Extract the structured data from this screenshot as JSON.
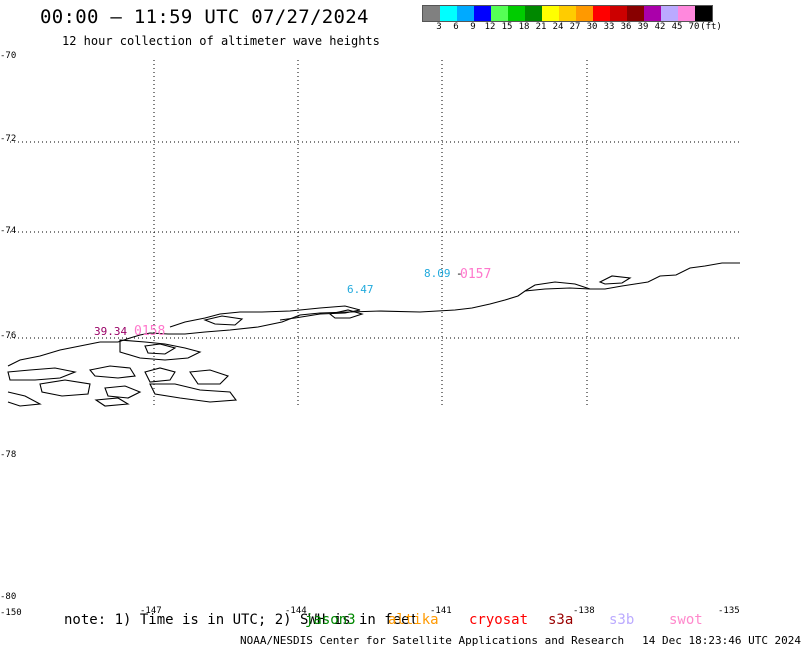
{
  "header": {
    "title": "00:00 – 11:59 UTC 07/27/2024",
    "subtitle": "12 hour collection of altimeter wave heights"
  },
  "legend": {
    "colors": [
      "#808080",
      "#00ffff",
      "#00aaff",
      "#0000ff",
      "#55ff55",
      "#00cc00",
      "#008800",
      "#ffff00",
      "#ffcc00",
      "#ff9900",
      "#ff0000",
      "#cc0000",
      "#880000",
      "#aa00aa",
      "#bbaaff",
      "#ff88dd",
      "#000000"
    ],
    "labels": [
      "3",
      "6",
      "9",
      "12",
      "15",
      "18",
      "21",
      "24",
      "27",
      "30",
      "33",
      "36",
      "39",
      "42",
      "45",
      "70",
      "(ft)"
    ]
  },
  "map": {
    "upper_lat_labels": [
      "-70",
      "-72",
      "-74",
      "-76",
      "-78"
    ],
    "lower_lat_labels": [
      "-78",
      "-80"
    ],
    "lon_labels": [
      "-150",
      "-147",
      "-144",
      "-141",
      "-138",
      "-135"
    ]
  },
  "tracks": [
    {
      "satellite": "swot",
      "label": "0157",
      "color": "#ff77cc"
    },
    {
      "satellite": "swot",
      "label": "0158",
      "color": "#ff77cc"
    }
  ],
  "wave_labels": [
    {
      "value": "8.09",
      "color": "#22aadd"
    },
    {
      "value": "6.47",
      "color": "#22aadd"
    },
    {
      "value": "39.34",
      "color": "#990066"
    }
  ],
  "footer": {
    "note": "note: 1) Time is in UTC; 2) SWH is in feet",
    "satellites": [
      {
        "name": "jason3",
        "color": "#008800"
      },
      {
        "name": "altika",
        "color": "#ff9900"
      },
      {
        "name": "cryosat",
        "color": "#ff0000"
      },
      {
        "name": "s3a",
        "color": "#990000"
      },
      {
        "name": "s3b",
        "color": "#bbaaff"
      },
      {
        "name": "swot",
        "color": "#ff88cc"
      }
    ],
    "credit": "NOAA/NESDIS Center for Satellite Applications and Research",
    "timestamp": "14 Dec 18:23:46 UTC 2024"
  }
}
